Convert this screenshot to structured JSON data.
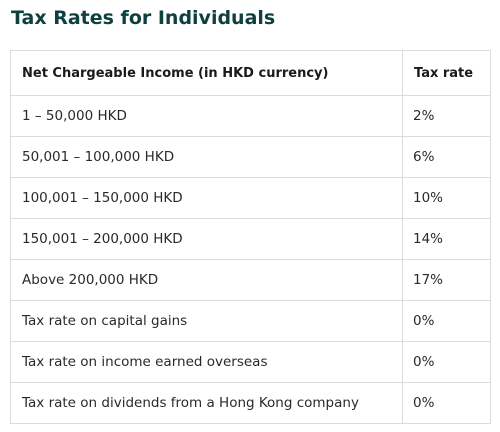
{
  "title": "Tax Rates for Individuals",
  "table": {
    "headers": [
      "Net Chargeable Income (in HKD currency)",
      "Tax rate"
    ],
    "rows": [
      [
        "1 – 50,000 HKD",
        "2%"
      ],
      [
        "50,001 – 100,000 HKD",
        "6%"
      ],
      [
        "100,001 – 150,000 HKD",
        "10%"
      ],
      [
        "150,001 – 200,000 HKD",
        "14%"
      ],
      [
        "Above 200,000 HKD",
        "17%"
      ],
      [
        "Tax rate on capital gains",
        "0%"
      ],
      [
        "Tax rate on income earned overseas",
        "0%"
      ],
      [
        "Tax rate on dividends from a Hong Kong company",
        "0%"
      ]
    ]
  }
}
